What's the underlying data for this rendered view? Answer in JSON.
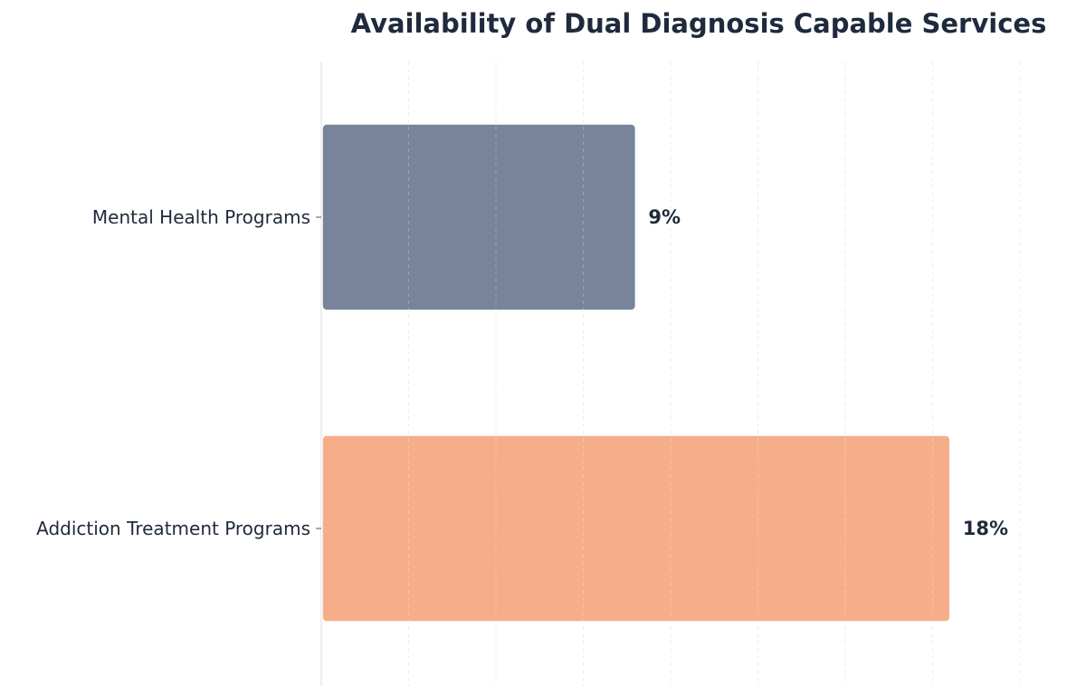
{
  "chart_data": {
    "type": "bar",
    "orientation": "horizontal",
    "title": "Availability of Dual Diagnosis Capable Services",
    "xlabel": "",
    "ylabel": "",
    "categories": [
      "Mental Health Programs",
      "Addiction Treatment Programs"
    ],
    "values": [
      9,
      18
    ],
    "value_labels": [
      "9%",
      "18%"
    ],
    "unit": "%",
    "xlim": [
      0,
      20
    ],
    "grid": "vertical dashed",
    "legend": "none",
    "colors": {
      "Mental Health Programs": "#778499",
      "Addiction Treatment Programs": "#f5ae89"
    },
    "text_color": "#1f2a3c"
  }
}
